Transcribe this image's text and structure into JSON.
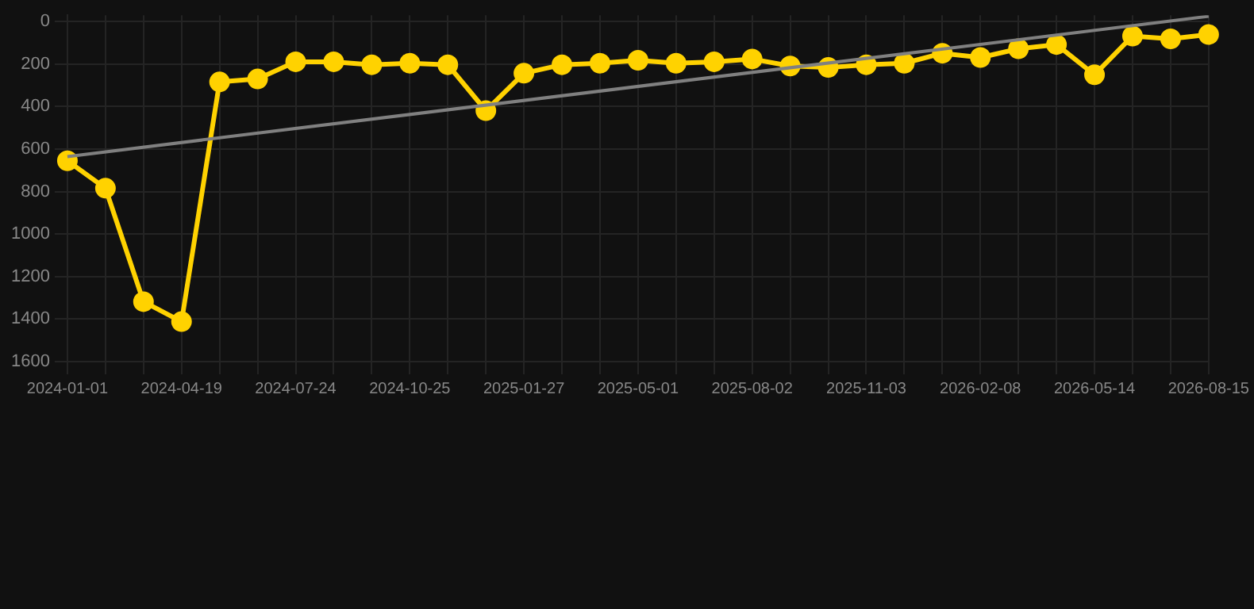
{
  "chart_data": {
    "type": "line",
    "categories": [
      "2024-01-01",
      null,
      null,
      "2024-04-19",
      null,
      null,
      "2024-07-24",
      null,
      null,
      "2024-10-25",
      null,
      null,
      "2025-01-27",
      null,
      null,
      "2025-05-01",
      null,
      null,
      "2025-08-02",
      null,
      null,
      "2025-11-03",
      null,
      null,
      "2026-02-08",
      null,
      null,
      "2026-05-14",
      null,
      null,
      "2026-08-15"
    ],
    "series": [
      {
        "color": "#ffd200",
        "marker": "circle",
        "values": [
          655,
          784,
          1318,
          1412,
          284,
          270,
          189,
          189,
          203,
          196,
          203,
          419,
          243,
          203,
          196,
          182,
          196,
          189,
          176,
          209,
          216,
          203,
          196,
          149,
          169,
          128,
          108,
          250,
          68,
          81,
          61
        ]
      },
      {
        "type": "line",
        "color": "#808080",
        "marker": "none",
        "values": [
          635,
          null,
          null,
          null,
          null,
          null,
          null,
          null,
          null,
          null,
          null,
          null,
          null,
          null,
          null,
          null,
          null,
          null,
          null,
          null,
          null,
          null,
          null,
          null,
          null,
          null,
          null,
          null,
          null,
          null,
          -25
        ]
      }
    ],
    "ylim": [
      1600,
      -30
    ],
    "yticks": [
      0,
      200,
      400,
      600,
      800,
      1000,
      1200,
      1400,
      1600
    ],
    "grid": true,
    "legend": false
  }
}
